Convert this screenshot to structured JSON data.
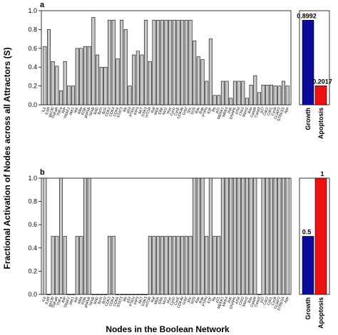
{
  "figure": {
    "ylabel": "Fractional Activation of Nodes across all Attractors (S)",
    "xlabel": "Nodes in the Boolean Network"
  },
  "chart_data": [
    {
      "type": "bar",
      "panel": "a",
      "ylim": [
        0,
        1.0
      ],
      "yticks": [
        "0.0",
        "0.2",
        "0.4",
        "0.6",
        "0.8",
        "1.0"
      ],
      "categories": [
        "IL6",
        "IL6R",
        "gp130",
        "TNFaR",
        "TNFa",
        "RIP",
        "TRAF2",
        "JAK1",
        "IKK",
        "IkBa",
        "PI3K",
        "pNFkB",
        "NFkB",
        "BAD",
        "BclX",
        "Bcl2",
        "CDK2",
        "CDK4",
        "CDK6",
        "STAT3",
        "Ikb",
        "p53",
        "PTEN",
        "PIP3",
        "AKT",
        "GSK3",
        "mTOR",
        "Raf",
        "MEK",
        "ERK",
        "Mcl1",
        "Myc",
        "CycD",
        "CycE",
        "CDK4b",
        "Grb2",
        "Shc",
        "SOS",
        "Ras",
        "Rap",
        "PTPN",
        "E2F",
        "Rb",
        "p21",
        "MEKK1",
        "MKK4",
        "JNK",
        "DNAPK",
        "ATM",
        "Chk2",
        "Mdm2",
        "Bax",
        "Casp9",
        "Casp3",
        "p27",
        "Cdc2",
        "Cdh1",
        "CycB",
        "CLIAP2",
        "STRESS",
        "Apo"
      ],
      "values": [
        0.62,
        0.8,
        0.46,
        0.41,
        0.15,
        0.46,
        0.2,
        0.2,
        0.6,
        0.6,
        0.62,
        0.62,
        0.93,
        0.53,
        0.4,
        0.4,
        0.9,
        0.9,
        0.49,
        0.9,
        0.8,
        0.2,
        0.53,
        0.57,
        0.53,
        0.9,
        0.46,
        0.9,
        0.9,
        0.9,
        0.9,
        0.9,
        0.9,
        0.9,
        0.9,
        0.9,
        0.9,
        0.68,
        0.51,
        0.48,
        0.25,
        0.7,
        0.1,
        0.1,
        0.25,
        0.25,
        0.07,
        0.25,
        0.25,
        0.25,
        0.07,
        0.21,
        0.31,
        0.13,
        0.21,
        0.21,
        0.21,
        0.2,
        0.2,
        0.25,
        0.2
      ],
      "summary": {
        "categories": [
          "Growth",
          "Apoptosis"
        ],
        "values": [
          0.8992,
          0.2017
        ],
        "labels": [
          "0.8992",
          "0.2017"
        ],
        "colors": [
          "#0b0b9e",
          "#ee1111"
        ]
      }
    },
    {
      "type": "bar",
      "panel": "b",
      "ylim": [
        0,
        1.0
      ],
      "yticks": [
        "0.0",
        "0.2",
        "0.4",
        "0.6",
        "0.8",
        "1.0"
      ],
      "categories": [
        "IL6",
        "IL6R",
        "gp130",
        "TNFaR",
        "TNFa",
        "RIP",
        "TRAF2",
        "JAK1",
        "IKK",
        "IkBa",
        "PI3K",
        "pNFkB",
        "NFkB",
        "BAD",
        "BclX",
        "Bcl2",
        "CDK2",
        "CDK4",
        "CDK6",
        "STAT3",
        "Ikb",
        "p53",
        "PTEN",
        "PIP3",
        "AKT",
        "GSK3",
        "mTOR",
        "Raf",
        "MEK",
        "ERK",
        "Mcl1",
        "Myc",
        "CycD",
        "CycE",
        "CDK4b",
        "Grb2",
        "Shc",
        "SOS",
        "Ras",
        "Rap",
        "PTPN",
        "E2F",
        "Rb",
        "p21",
        "MEKK1",
        "MKK4",
        "JNK",
        "DNAPK",
        "ATM",
        "Chk2",
        "Mdm2",
        "Bax",
        "Casp9",
        "Casp3",
        "p27",
        "Cdc2",
        "Cdh1",
        "CycB",
        "CLIAP2",
        "STRESS",
        "Apo"
      ],
      "values": [
        1,
        0,
        0.5,
        0.5,
        1,
        0.5,
        0,
        0,
        0.5,
        0.5,
        1,
        1,
        0,
        0,
        0,
        0,
        0.5,
        0.5,
        0,
        0,
        0,
        0,
        0,
        0,
        0,
        0,
        0.5,
        0.5,
        0.5,
        0.5,
        0.5,
        0.5,
        0.5,
        0.5,
        0.5,
        0.5,
        0.5,
        1,
        1,
        1,
        0.5,
        1,
        0.5,
        0.5,
        1,
        1,
        1,
        1,
        1,
        1,
        1,
        1,
        1,
        0,
        1,
        1,
        1,
        1,
        1,
        1,
        1
      ],
      "summary": {
        "categories": [
          "Growth",
          "Apoptosis"
        ],
        "values": [
          0.5,
          1
        ],
        "labels": [
          "0.5",
          "1"
        ],
        "colors": [
          "#0b0b9e",
          "#ee1111"
        ]
      }
    }
  ]
}
